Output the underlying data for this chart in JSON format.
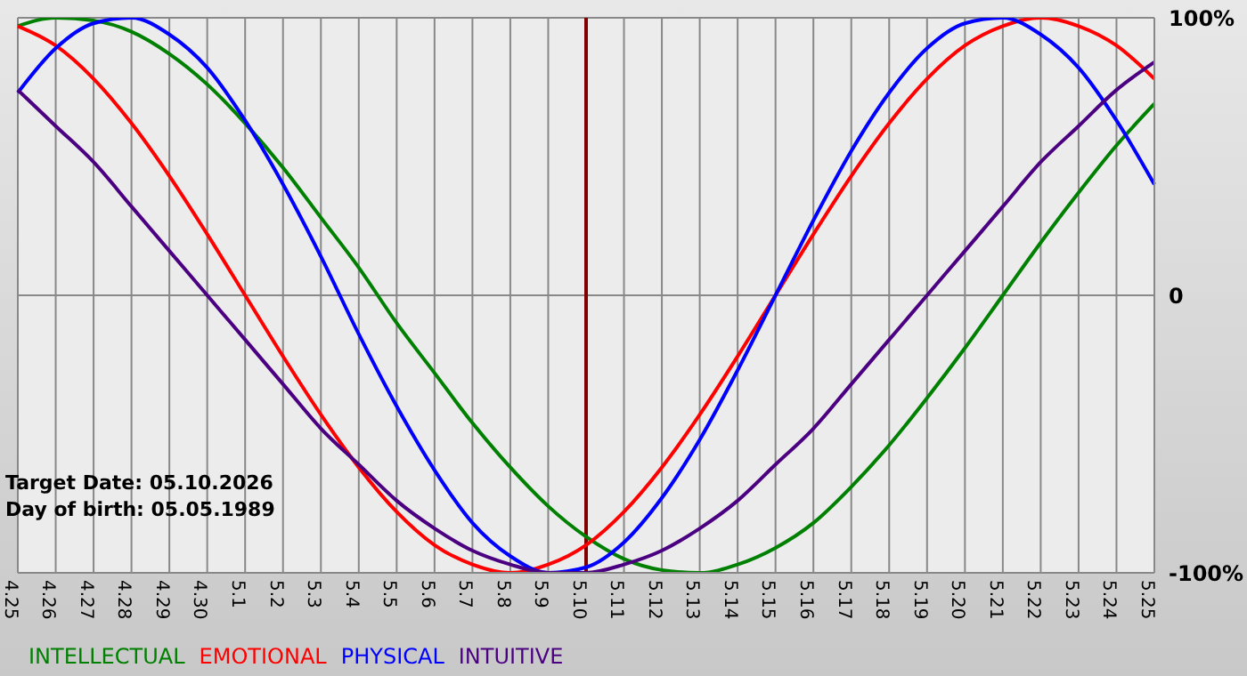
{
  "chart_data": {
    "type": "line",
    "categories": [
      "4.25",
      "4.26",
      "4.27",
      "4.28",
      "4.29",
      "4.30",
      "5.1",
      "5.2",
      "5.3",
      "5.4",
      "5.5",
      "5.6",
      "5.7",
      "5.8",
      "5.9",
      "5.10",
      "5.11",
      "5.12",
      "5.13",
      "5.14",
      "5.15",
      "5.16",
      "5.17",
      "5.18",
      "5.19",
      "5.20",
      "5.21",
      "5.22",
      "5.23",
      "5.24",
      "5.25"
    ],
    "series": [
      {
        "name": "INTELLECTUAL",
        "color": "#008000",
        "values": [
          97,
          100,
          99,
          95,
          87,
          76,
          62,
          46,
          28,
          10,
          -10,
          -28,
          -46,
          -62,
          -76,
          -87,
          -95,
          -99,
          -100,
          -97,
          -91,
          -82,
          -69,
          -54,
          -37,
          -19,
          0,
          19,
          37,
          54,
          69
        ]
      },
      {
        "name": "EMOTIONAL",
        "color": "#ff0000",
        "values": [
          97,
          90,
          78,
          62,
          43,
          22,
          0,
          -22,
          -43,
          -62,
          -78,
          -90,
          -97,
          -100,
          -97,
          -90,
          -78,
          -62,
          -43,
          -22,
          0,
          22,
          43,
          62,
          78,
          90,
          97,
          100,
          97,
          90,
          78
        ]
      },
      {
        "name": "PHYSICAL",
        "color": "#0000ff",
        "values": [
          73,
          89,
          98,
          100,
          94,
          82,
          63,
          40,
          14,
          -14,
          -40,
          -63,
          -82,
          -94,
          -100,
          -98,
          -89,
          -73,
          -52,
          -27,
          0,
          27,
          52,
          73,
          89,
          98,
          100,
          94,
          82,
          63,
          40
        ]
      },
      {
        "name": "INTUITIVE",
        "color": "#4b0082",
        "values": [
          74,
          61,
          48,
          32,
          16,
          0,
          -16,
          -32,
          -48,
          -61,
          -74,
          -84,
          -92,
          -97,
          -100,
          -100,
          -97,
          -92,
          -84,
          -74,
          -61,
          -48,
          -32,
          -16,
          0,
          16,
          32,
          48,
          61,
          74,
          84
        ]
      }
    ],
    "ylim": [
      -100,
      100
    ],
    "yticks": [
      {
        "value": 100,
        "label": "100%"
      },
      0,
      {
        "value": -100,
        "label": "-100%"
      }
    ],
    "grid": true,
    "legend": "bottom",
    "marker": "none",
    "line_style": "solid",
    "ref_lines": [
      {
        "axis": "x",
        "value": "5.10",
        "color": "#800000"
      }
    ],
    "annotations": [
      "Target Date: 05.10.2026",
      "Day of birth: 05.05.1989"
    ]
  }
}
